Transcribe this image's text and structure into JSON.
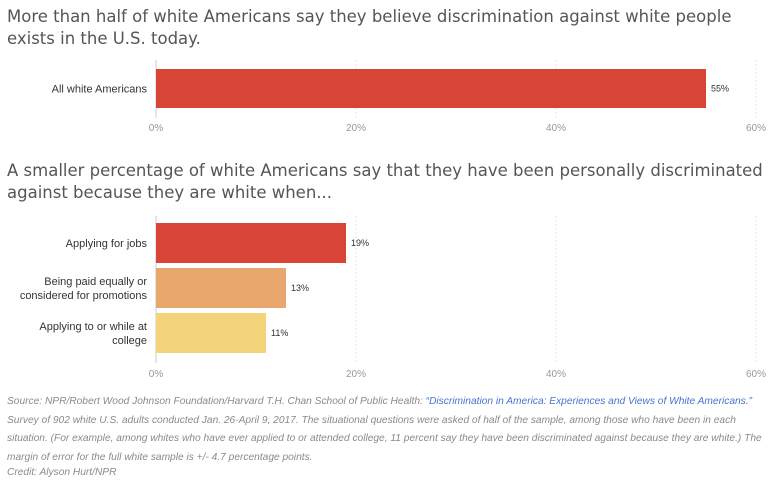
{
  "chart_data": [
    {
      "type": "bar",
      "orientation": "horizontal",
      "title": "More than half of white Americans say they believe discrimination against white people exists in the U.S. today.",
      "categories": [
        "All white Americans"
      ],
      "values": [
        55
      ],
      "value_labels": [
        "55%"
      ],
      "colors": [
        "#d84435"
      ],
      "xlim": [
        0,
        60
      ],
      "xticks": [
        "0%",
        "20%",
        "40%",
        "60%"
      ],
      "grid": true
    },
    {
      "type": "bar",
      "orientation": "horizontal",
      "title": "A smaller percentage of white Americans say that they have been personally discriminated against because they are white when...",
      "categories": [
        [
          "Applying for jobs"
        ],
        [
          "Being paid equally or",
          "considered for promotions"
        ],
        [
          "Applying to or while at",
          "college"
        ]
      ],
      "values": [
        19,
        13,
        11
      ],
      "value_labels": [
        "19%",
        "13%",
        "11%"
      ],
      "colors": [
        "#d84435",
        "#e9a76d",
        "#f3d47a"
      ],
      "xlim": [
        0,
        60
      ],
      "xticks": [
        "0%",
        "20%",
        "40%",
        "60%"
      ],
      "grid": true
    }
  ],
  "source": {
    "prefix": "Source: NPR/Robert Wood Johnson Foundation/Harvard T.H. Chan School of Public Health: ",
    "link_text": "“Discrimination in America: Experiences and Views of White Americans.”",
    "suffix": " Survey of 902 white U.S. adults conducted Jan. 26-April 9, 2017. The situational questions were asked of half of the sample, among those who have been in each situation. (For example, among whites who have ever applied to or attended college, 11 percent say they have been discriminated against because they are white.) The margin of error for the full white sample is +/- 4.7 percentage points."
  },
  "credit": "Credit: Alyson Hurt/NPR"
}
